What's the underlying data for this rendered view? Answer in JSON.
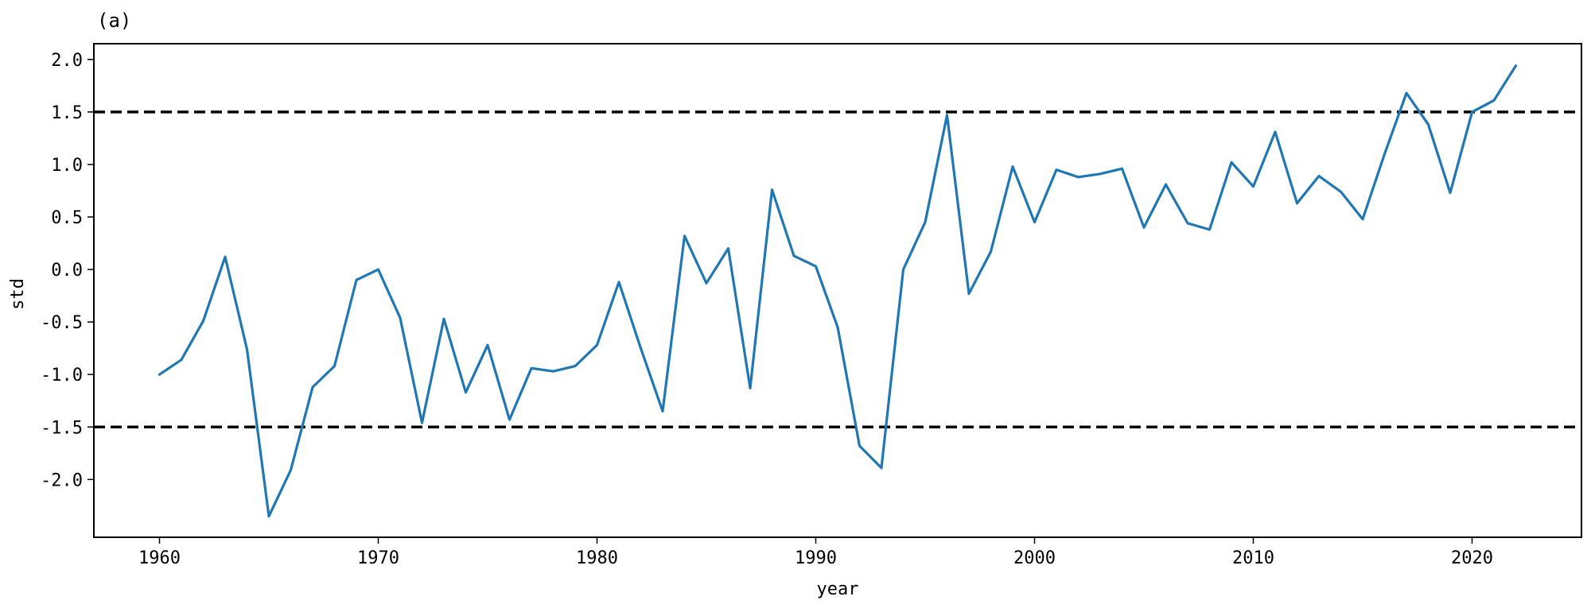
{
  "chart_data": {
    "type": "line",
    "title": "(a)",
    "xlabel": "year",
    "ylabel": "std",
    "xlim": [
      1957,
      2025
    ],
    "ylim": [
      -2.55,
      2.15
    ],
    "x_ticks": [
      1960,
      1970,
      1980,
      1990,
      2000,
      2010,
      2020
    ],
    "y_ticks": [
      2.0,
      1.5,
      1.0,
      0.5,
      0.0,
      -0.5,
      -1.0,
      -1.5,
      -2.0
    ],
    "y_tick_labels": [
      "2.0",
      "1.5",
      "1.0",
      "0.5",
      "0.0",
      "-0.5",
      "-1.0",
      "-1.5",
      "-2.0"
    ],
    "grid": false,
    "reference_lines": [
      1.5,
      -1.5
    ],
    "colors": {
      "series": "#1f77b4",
      "reference": "#000000"
    },
    "series": [
      {
        "x": [
          1960,
          1961,
          1962,
          1963,
          1964,
          1965,
          1966,
          1967,
          1968,
          1969,
          1970,
          1971,
          1972,
          1973,
          1974,
          1975,
          1976,
          1977,
          1978,
          1979,
          1980,
          1981,
          1982,
          1983,
          1984,
          1985,
          1986,
          1987,
          1988,
          1989,
          1990,
          1991,
          1992,
          1993,
          1994,
          1995,
          1996,
          1997,
          1998,
          1999,
          2000,
          2001,
          2002,
          2003,
          2004,
          2005,
          2006,
          2007,
          2008,
          2009,
          2010,
          2011,
          2012,
          2013,
          2014,
          2015,
          2016,
          2017,
          2018,
          2019,
          2020,
          2021,
          2022
        ],
        "values": [
          -1.0,
          -0.86,
          -0.49,
          0.12,
          -0.76,
          -2.35,
          -1.91,
          -1.12,
          -0.92,
          -0.1,
          0.0,
          -0.46,
          -1.46,
          -0.47,
          -1.17,
          -0.72,
          -1.43,
          -0.94,
          -0.97,
          -0.92,
          -0.72,
          -0.12,
          -0.75,
          -1.35,
          0.32,
          -0.13,
          0.2,
          -1.13,
          0.76,
          0.13,
          0.03,
          -0.55,
          -1.68,
          -1.89,
          0.0,
          0.45,
          1.47,
          -0.23,
          0.17,
          0.98,
          0.45,
          0.95,
          0.88,
          0.91,
          0.96,
          0.4,
          0.81,
          0.44,
          0.38,
          1.02,
          0.79,
          1.31,
          0.63,
          0.89,
          0.74,
          0.48,
          1.1,
          1.68,
          1.38,
          0.73,
          1.5,
          1.61,
          1.94
        ]
      }
    ]
  }
}
